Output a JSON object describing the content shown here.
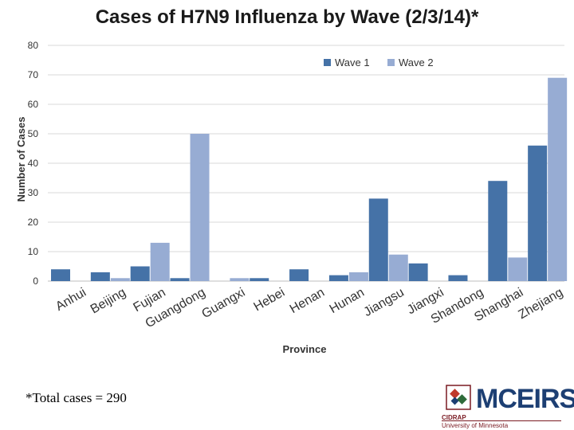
{
  "title": "Cases of H7N9 Influenza by Wave (2/3/14)*",
  "footnote": "*Total cases = 290",
  "logo": {
    "word": "MCEIRS",
    "org": "CIDRAP",
    "university": "University of Minnesota"
  },
  "colors": {
    "wave1": "#4572a7",
    "wave2": "#97acd3",
    "grid": "#d9d9d9",
    "text": "#333333"
  },
  "chart_data": {
    "type": "bar",
    "title": "Cases of H7N9 Influenza by Wave (2/3/14)*",
    "xlabel": "Province",
    "ylabel": "Number of Cases",
    "ylim": [
      0,
      80
    ],
    "yticks": [
      0,
      10,
      20,
      30,
      40,
      50,
      60,
      70,
      80
    ],
    "grid": true,
    "legend": "top-right",
    "categories": [
      "Anhui",
      "Beijing",
      "Fujian",
      "Guangdong",
      "Guangxi",
      "Hebei",
      "Henan",
      "Hunan",
      "Jiangsu",
      "Jiangxi",
      "Shandong",
      "Shanghai",
      "Zhejiang"
    ],
    "series": [
      {
        "name": "Wave 1",
        "values": [
          4,
          3,
          5,
          1,
          0,
          1,
          4,
          2,
          28,
          6,
          2,
          34,
          46
        ]
      },
      {
        "name": "Wave 2",
        "values": [
          0,
          1,
          13,
          50,
          1,
          0,
          0,
          3,
          9,
          0,
          0,
          8,
          69
        ]
      }
    ]
  }
}
